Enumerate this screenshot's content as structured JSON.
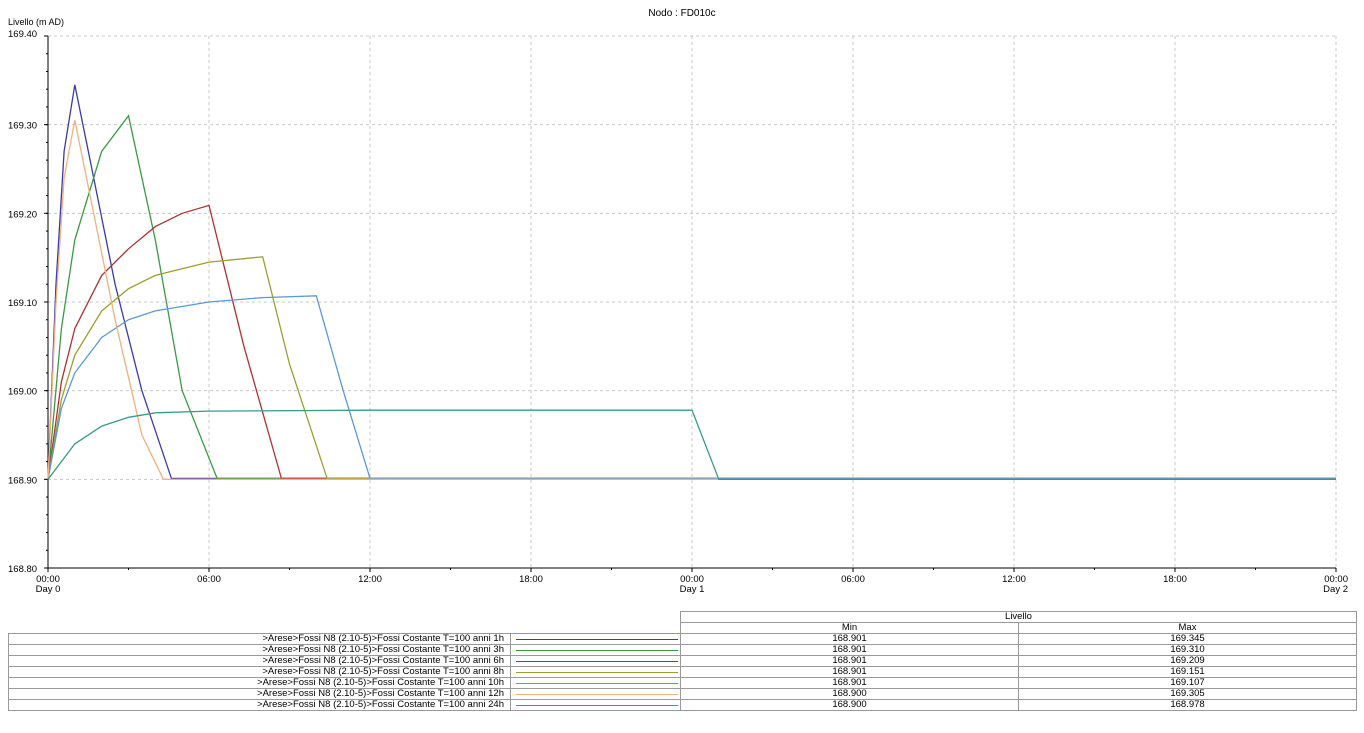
{
  "chart_data": {
    "type": "line",
    "title": "Nodo : FD010c",
    "ylabel": "Livello (m AD)",
    "ylim": [
      168.8,
      169.4
    ],
    "yticks": [
      "169.40",
      "169.30",
      "169.20",
      "169.10",
      "169.00",
      "168.90",
      "168.80"
    ],
    "xlim": [
      0,
      48
    ],
    "xticks": [
      {
        "t": 0,
        "time": "00:00",
        "day": "Day 0"
      },
      {
        "t": 6,
        "time": "06:00",
        "day": ""
      },
      {
        "t": 12,
        "time": "12:00",
        "day": ""
      },
      {
        "t": 18,
        "time": "18:00",
        "day": ""
      },
      {
        "t": 24,
        "time": "00:00",
        "day": "Day 1"
      },
      {
        "t": 30,
        "time": "06:00",
        "day": ""
      },
      {
        "t": 36,
        "time": "12:00",
        "day": ""
      },
      {
        "t": 42,
        "time": "18:00",
        "day": ""
      },
      {
        "t": 48,
        "time": "00:00",
        "day": "Day 2"
      }
    ],
    "grid": true,
    "series": [
      {
        "name": ">Arese>Fossi N8 (2.10-5)>Fossi Costante T=100 anni 1h",
        "color": "#3a3aa8",
        "points": [
          [
            0,
            168.9
          ],
          [
            0.3,
            169.12
          ],
          [
            0.6,
            169.27
          ],
          [
            1,
            169.345
          ],
          [
            1.5,
            169.27
          ],
          [
            2.5,
            169.12
          ],
          [
            3.5,
            169.0
          ],
          [
            4.6,
            168.901
          ],
          [
            48,
            168.901
          ]
        ]
      },
      {
        "name": ">Arese>Fossi N8 (2.10-5)>Fossi Costante T=100 anni 3h",
        "color": "#3a9a44",
        "points": [
          [
            0,
            168.9
          ],
          [
            0.5,
            169.07
          ],
          [
            1,
            169.17
          ],
          [
            2,
            169.27
          ],
          [
            3,
            169.31
          ],
          [
            4,
            169.17
          ],
          [
            5,
            169.0
          ],
          [
            6.3,
            168.901
          ],
          [
            48,
            168.901
          ]
        ]
      },
      {
        "name": ">Arese>Fossi N8 (2.10-5)>Fossi Costante T=100 anni 6h",
        "color": "#b03030",
        "points": [
          [
            0,
            168.9
          ],
          [
            0.5,
            169.01
          ],
          [
            1,
            169.07
          ],
          [
            2,
            169.13
          ],
          [
            3,
            169.16
          ],
          [
            4,
            169.185
          ],
          [
            5,
            169.2
          ],
          [
            6,
            169.209
          ],
          [
            7.3,
            169.05
          ],
          [
            8.7,
            168.901
          ],
          [
            48,
            168.901
          ]
        ]
      },
      {
        "name": ">Arese>Fossi N8 (2.10-5)>Fossi Costante T=100 anni 8h",
        "color": "#9aa030",
        "points": [
          [
            0,
            168.9
          ],
          [
            0.5,
            168.99
          ],
          [
            1,
            169.04
          ],
          [
            2,
            169.09
          ],
          [
            3,
            169.115
          ],
          [
            4,
            169.13
          ],
          [
            6,
            169.145
          ],
          [
            8,
            169.151
          ],
          [
            9,
            169.03
          ],
          [
            10.4,
            168.901
          ],
          [
            48,
            168.901
          ]
        ]
      },
      {
        "name": ">Arese>Fossi N8 (2.10-5)>Fossi Costante T=100 anni 10h",
        "color": "#5a9ad8",
        "points": [
          [
            0,
            168.9
          ],
          [
            0.5,
            168.98
          ],
          [
            1,
            169.02
          ],
          [
            2,
            169.06
          ],
          [
            3,
            169.08
          ],
          [
            4,
            169.09
          ],
          [
            6,
            169.1
          ],
          [
            8,
            169.105
          ],
          [
            10,
            169.107
          ],
          [
            11,
            169.0
          ],
          [
            12,
            168.901
          ],
          [
            48,
            168.901
          ]
        ]
      },
      {
        "name": ">Arese>Fossi N8 (2.10-5)>Fossi Costante T=100 anni 12h",
        "color": "#f0b080",
        "points": [
          [
            0,
            168.9
          ],
          [
            0.3,
            169.1
          ],
          [
            0.6,
            169.24
          ],
          [
            1,
            169.305
          ],
          [
            1.5,
            169.23
          ],
          [
            2.5,
            169.08
          ],
          [
            3.5,
            168.95
          ],
          [
            4.3,
            168.9
          ],
          [
            48,
            168.9
          ]
        ]
      },
      {
        "name": ">Arese>Fossi N8 (2.10-5)>Fossi Costante T=100 anni 24h",
        "color": "#3a9a8a",
        "points": [
          [
            0,
            168.9
          ],
          [
            0.5,
            168.92
          ],
          [
            1,
            168.94
          ],
          [
            2,
            168.96
          ],
          [
            3,
            168.97
          ],
          [
            4,
            168.975
          ],
          [
            6,
            168.977
          ],
          [
            12,
            168.978
          ],
          [
            24,
            168.978
          ],
          [
            25,
            168.9
          ],
          [
            48,
            168.9
          ]
        ]
      }
    ]
  },
  "stats": {
    "group_header": "Livello",
    "col_min": "Min",
    "col_max": "Max",
    "rows": [
      {
        "min": "168.901",
        "max": "169.345"
      },
      {
        "min": "168.901",
        "max": "169.310"
      },
      {
        "min": "168.901",
        "max": "169.209"
      },
      {
        "min": "168.901",
        "max": "169.151"
      },
      {
        "min": "168.901",
        "max": "169.107"
      },
      {
        "min": "168.900",
        "max": "169.305"
      },
      {
        "min": "168.900",
        "max": "168.978"
      }
    ]
  }
}
